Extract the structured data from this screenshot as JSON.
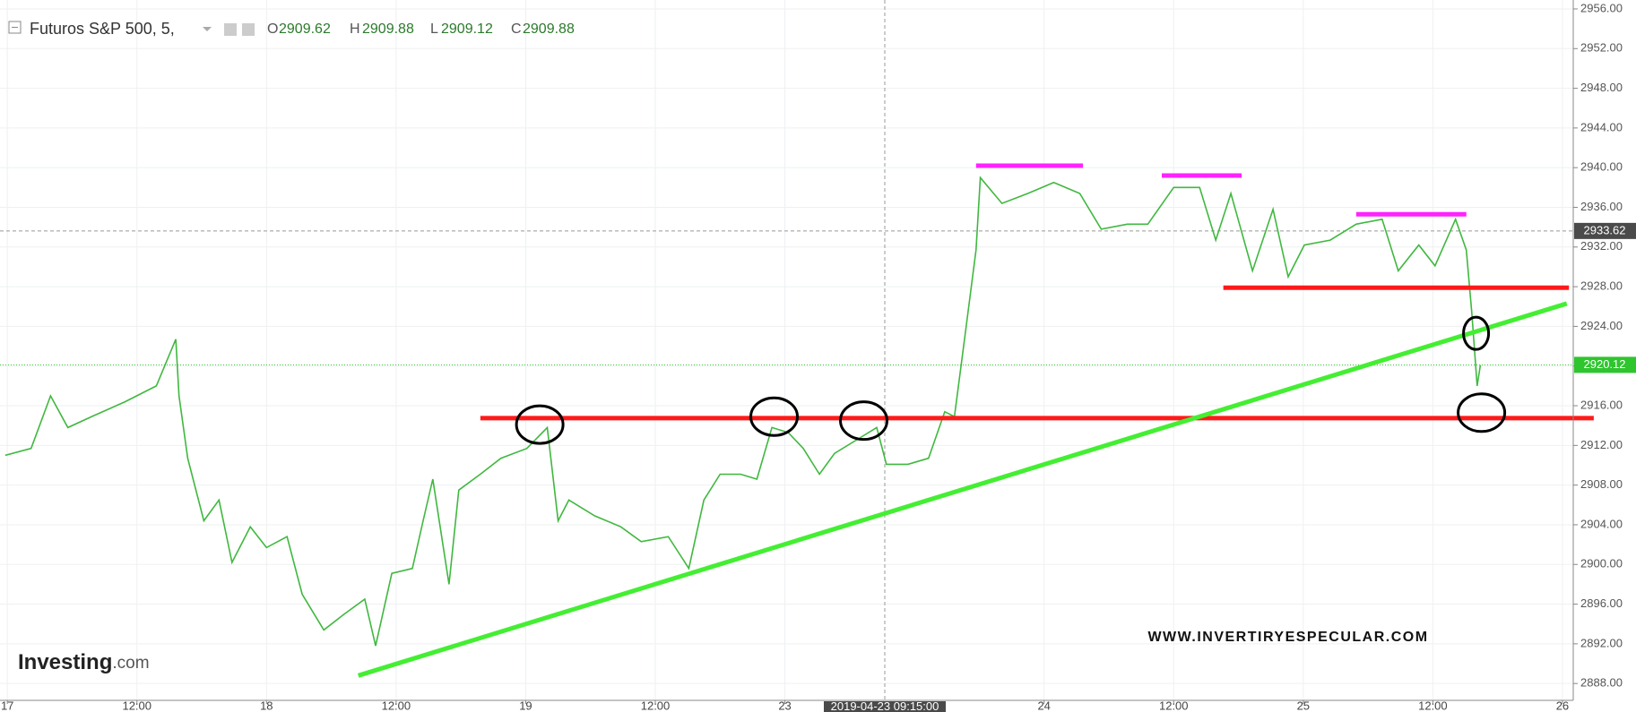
{
  "chart_data": {
    "type": "line",
    "title": "Futuros S&P 500, 5,",
    "ohlc": [
      {
        "label": "O",
        "value": 2909.62
      },
      {
        "label": "H",
        "value": 2909.88
      },
      {
        "label": "L",
        "value": 2909.12
      },
      {
        "label": "C",
        "value": 2909.88
      }
    ],
    "color": "#3fb83f",
    "x": [
      -0.2,
      2.2,
      4.0,
      5.6,
      8.0,
      10.9,
      13.8,
      15.6,
      15.9,
      16.7,
      18.2,
      19.6,
      20.8,
      22.5,
      24.0,
      25.9,
      27.3,
      29.3,
      31.2,
      33.1,
      34.1,
      35.6,
      37.5,
      38.5,
      39.4,
      40.9,
      41.8,
      43.8,
      45.7,
      48.1,
      50.0,
      51.0,
      52.0,
      54.4,
      56.8,
      58.7,
      61.2,
      63.1,
      64.5,
      66.0,
      67.9,
      69.4,
      70.8,
      72.3,
      73.7,
      75.2,
      76.6,
      79.0,
      80.5,
      81.4,
      83.4,
      85.3,
      86.8,
      87.7,
      88.7,
      89.7,
      90.1,
      92.1,
      94.5,
      96.9,
      99.3,
      101.3,
      103.7,
      105.6,
      108.0,
      110.4,
      111.9,
      113.3,
      115.3,
      117.2,
      118.6,
      120.1,
      122.5,
      124.9,
      127.3,
      128.8,
      130.7,
      132.2,
      134.1,
      135.1,
      135.6,
      136.1,
      136.4
    ],
    "values": [
      2911,
      2911.7,
      2917,
      2913.8,
      2915,
      2916.4,
      2918,
      2922.7,
      2917,
      2910.7,
      2904.4,
      2906.5,
      2900.2,
      2903.8,
      2901.7,
      2902.8,
      2897,
      2893.4,
      2895,
      2896.5,
      2891.8,
      2899.1,
      2899.6,
      2904.4,
      2908.6,
      2898,
      2907.5,
      2909.1,
      2910.7,
      2911.7,
      2913.8,
      2904.4,
      2906.5,
      2904.9,
      2903.8,
      2902.3,
      2902.8,
      2899.6,
      2906.5,
      2909.1,
      2909.1,
      2908.6,
      2913.8,
      2913.3,
      2911.7,
      2909.1,
      2911.2,
      2912.8,
      2913.8,
      2910.1,
      2910.1,
      2910.7,
      2915.4,
      2914.9,
      2923.3,
      2931.7,
      2939,
      2936.4,
      2937.4,
      2938.5,
      2937.4,
      2933.8,
      2934.3,
      2934.3,
      2938,
      2938,
      2932.7,
      2937.4,
      2929.6,
      2935.8,
      2929,
      2932.2,
      2932.7,
      2934.3,
      2934.8,
      2929.6,
      2932.2,
      2930.1,
      2934.8,
      2931.7,
      2925.4,
      2918,
      2920.1
    ],
    "xlim": [
      -0.68,
      145.0
    ],
    "ylim": [
      2886.3,
      2956.9
    ],
    "xticks": [
      {
        "value": 0,
        "label": "17"
      },
      {
        "value": 12,
        "label": "12:00"
      },
      {
        "value": 24,
        "label": "18"
      },
      {
        "value": 36,
        "label": "12:00"
      },
      {
        "value": 48,
        "label": "19"
      },
      {
        "value": 60,
        "label": "12:00"
      },
      {
        "value": 72,
        "label": "23"
      },
      {
        "value": 96,
        "label": "24"
      },
      {
        "value": 108,
        "label": "12:00"
      },
      {
        "value": 120,
        "label": "25"
      },
      {
        "value": 132,
        "label": "12:00"
      },
      {
        "value": 144,
        "label": "26"
      }
    ],
    "yticks": [
      {
        "value": 2888,
        "label": "2888.00"
      },
      {
        "value": 2892,
        "label": "2892.00"
      },
      {
        "value": 2896,
        "label": "2896.00"
      },
      {
        "value": 2900,
        "label": "2900.00"
      },
      {
        "value": 2904,
        "label": "2904.00"
      },
      {
        "value": 2908,
        "label": "2908.00"
      },
      {
        "value": 2912,
        "label": "2912.00"
      },
      {
        "value": 2916,
        "label": "2916.00"
      },
      {
        "value": 2920,
        "label": "2920.00"
      },
      {
        "value": 2924,
        "label": "2924.00"
      },
      {
        "value": 2928,
        "label": "2928.00"
      },
      {
        "value": 2932,
        "label": "2932.00"
      },
      {
        "value": 2936,
        "label": "2936.00"
      },
      {
        "value": 2940,
        "label": "2940.00"
      },
      {
        "value": 2944,
        "label": "2944.00"
      },
      {
        "value": 2948,
        "label": "2948.00"
      },
      {
        "value": 2952,
        "label": "2952.00"
      },
      {
        "value": 2956,
        "label": "2956.00"
      }
    ],
    "grid": true,
    "marker_price": {
      "value": 2933.62,
      "color": "#4a4a4a"
    },
    "last_price": {
      "value": 2920.12,
      "color": "#2ec52e"
    },
    "crosshair": {
      "x": 81.25,
      "label": "2019-04-23 09:15:00"
    },
    "drawings": [
      {
        "color": "#ff1a1a",
        "x": [
          43.8,
          146.9
        ],
        "y": [
          2914.75,
          2914.75
        ]
      },
      {
        "color": "#ff1a1a",
        "x": [
          112.6,
          144.6
        ],
        "y": [
          2927.9,
          2927.9
        ]
      },
      {
        "color": "#44ee33",
        "x": [
          32.5,
          144.4
        ],
        "y": [
          2888.8,
          2926.3
        ]
      },
      {
        "color": "#ff22ff",
        "x": [
          89.7,
          99.6
        ],
        "y": [
          2940.2,
          2940.2
        ]
      },
      {
        "color": "#ff22ff",
        "x": [
          106.9,
          114.3
        ],
        "y": [
          2939.2,
          2939.2
        ]
      },
      {
        "color": "#ff22ff",
        "x": [
          124.9,
          135.1
        ],
        "y": [
          2935.3,
          2935.3
        ]
      }
    ],
    "circles": [
      {
        "x": 49.3,
        "y": 2914.1
      },
      {
        "x": 71.0,
        "y": 2914.9
      },
      {
        "x": 79.3,
        "y": 2914.5
      },
      {
        "x": 136.0,
        "y": 2923.3
      },
      {
        "x": 136.5,
        "y": 2915.3
      }
    ],
    "watermark": "WWW.INVERTIRYESPECULAR.COM",
    "logo": {
      "name": "Investing",
      "suffix": ".com"
    }
  }
}
